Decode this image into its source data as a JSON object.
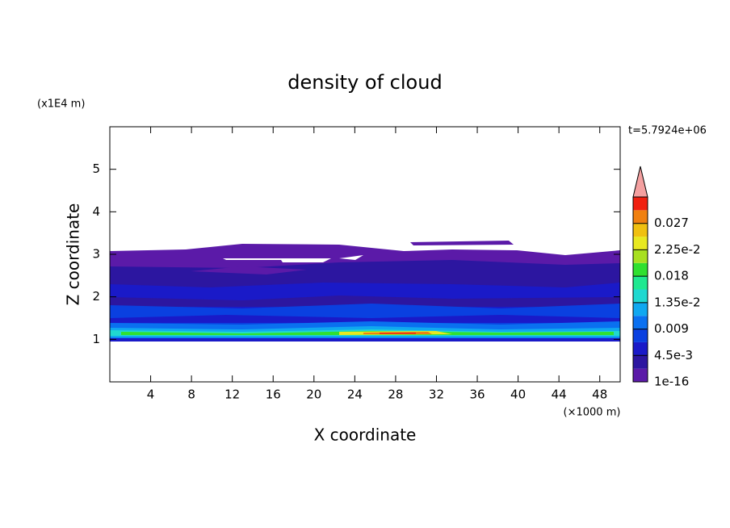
{
  "chart_data": {
    "type": "contour",
    "title": "density of cloud",
    "x_label": "X coordinate",
    "y_label": "Z coordinate",
    "x_unit": "(×1000 m)",
    "y_unit": "(x1E4 m)",
    "time_label": "t=5.7924e+06",
    "xlim": [
      0,
      50
    ],
    "xticks": [
      4,
      8,
      12,
      16,
      20,
      24,
      28,
      32,
      36,
      40,
      44,
      48
    ],
    "ylim": [
      0,
      6
    ],
    "yticks": [
      1,
      2,
      3,
      4,
      5
    ],
    "colorbar": {
      "levels": [
        1e-16,
        0.00225,
        0.0045,
        0.00675,
        0.009,
        0.01125,
        0.0135,
        0.01575,
        0.018,
        0.02025,
        0.0225,
        0.02475,
        0.027,
        0.02925,
        0.0315
      ],
      "colors": [
        "#5b1aa8",
        "#2c16a0",
        "#1a1ac8",
        "#0a40e0",
        "#0a70f0",
        "#10a8f0",
        "#20d8d0",
        "#20e890",
        "#30e030",
        "#a8e020",
        "#e8e820",
        "#f0c010",
        "#f08010",
        "#f02010"
      ],
      "over_color": "#f4a0a0",
      "ticks": [
        {
          "value": 1e-16,
          "label": "1e-16"
        },
        {
          "value": 0.0045,
          "label": "4.5e-3"
        },
        0.009,
        {
          "value": 0.0135,
          "label": "1.35e-2"
        },
        0.018,
        {
          "value": 0.0225,
          "label": "2.25e-2"
        },
        0.027
      ]
    }
  }
}
